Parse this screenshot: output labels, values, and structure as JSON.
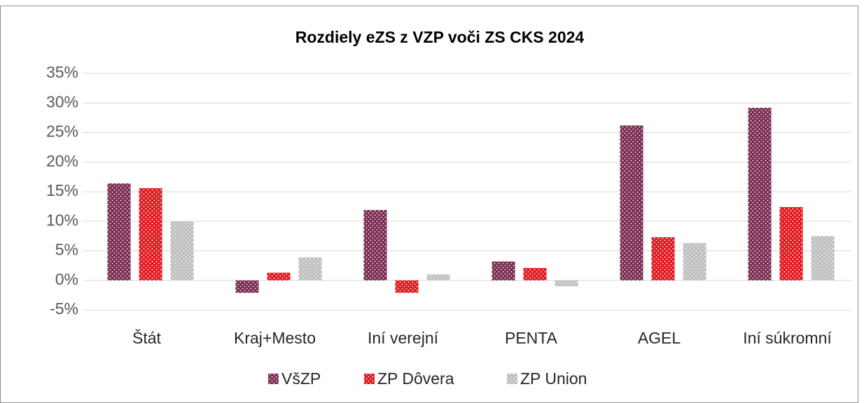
{
  "chart_data": {
    "type": "bar",
    "title": "Rozdiely eZS z VZP voči ZS CKS 2024",
    "categories": [
      "Štát",
      "Kraj+Mesto",
      "Iní verejní",
      "PENTA",
      "AGEL",
      "Iní súkromní"
    ],
    "series": [
      {
        "name": "VšZP",
        "color": "#7b2d52",
        "values": [
          16.4,
          -2.1,
          11.9,
          3.2,
          26.2,
          29.2
        ]
      },
      {
        "name": "ZP Dôvera",
        "color": "#e0191f",
        "values": [
          15.6,
          1.3,
          -2.1,
          2.1,
          7.3,
          12.4
        ]
      },
      {
        "name": "ZP Union",
        "color": "#bfbfbf",
        "values": [
          10.0,
          3.9,
          1.0,
          -1.0,
          6.3,
          7.5
        ]
      }
    ],
    "ylim": [
      -5,
      35
    ],
    "yticks": [
      {
        "value": -5,
        "label": "-5%"
      },
      {
        "value": 0,
        "label": "0%"
      },
      {
        "value": 5,
        "label": "5%"
      },
      {
        "value": 10,
        "label": "10%"
      },
      {
        "value": 15,
        "label": "15%"
      },
      {
        "value": 20,
        "label": "20%"
      },
      {
        "value": 25,
        "label": "25%"
      },
      {
        "value": 30,
        "label": "30%"
      },
      {
        "value": 35,
        "label": "35%"
      }
    ],
    "grid": true,
    "legend": "bottom"
  }
}
